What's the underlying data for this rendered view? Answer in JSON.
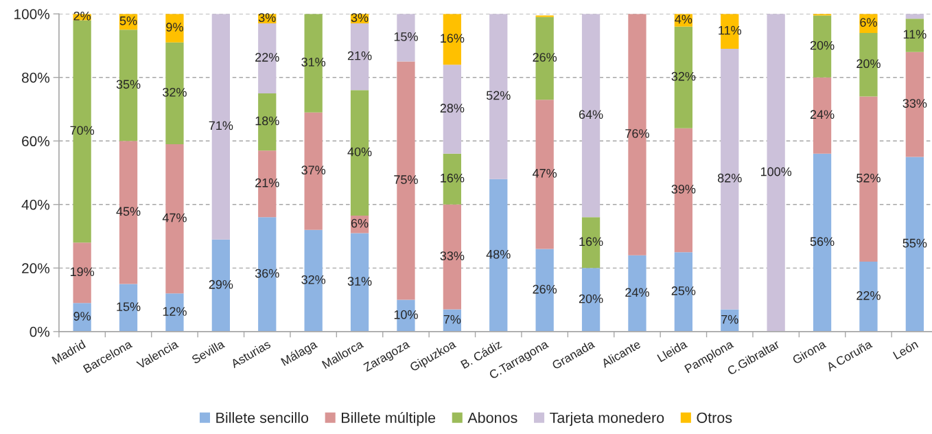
{
  "chart_data": {
    "type": "bar",
    "stacked": true,
    "categories": [
      "Madrid",
      "Barcelona",
      "Valencia",
      "Sevilla",
      "Asturias",
      "Málaga",
      "Mallorca",
      "Zaragoza",
      "Gipuzkoa",
      "B. Cádiz",
      "C.Tarragona",
      "Granada",
      "Alicante",
      "Lleida",
      "Pamplona",
      "C.Gibraltar",
      "Girona",
      "A Coruña",
      "León"
    ],
    "series": [
      {
        "name": "Billete sencillo",
        "color": "#8eb4e3",
        "values": [
          9,
          15,
          12,
          29,
          36,
          32,
          31,
          10,
          7,
          48,
          26,
          20,
          24,
          25,
          7,
          null,
          56,
          22,
          55
        ],
        "value_labels": [
          "9%",
          "15%",
          "12%",
          "29%",
          "36%",
          "32%",
          "31%",
          "10%",
          "7%",
          "48%",
          "26%",
          "20%",
          "24%",
          "25%",
          "7%",
          null,
          "56%",
          "22%",
          "55%"
        ]
      },
      {
        "name": "Billete múltiple",
        "color": "#d99594",
        "values": [
          19,
          45,
          47,
          null,
          21,
          37,
          5.5,
          75,
          33,
          null,
          47,
          null,
          76,
          39,
          null,
          null,
          24,
          52,
          33
        ],
        "value_labels": [
          "19%",
          "45%",
          "47%",
          null,
          "21%",
          "37%",
          "6%",
          "75%",
          "33%",
          null,
          "47%",
          null,
          "76%",
          "39%",
          null,
          null,
          "24%",
          "52%",
          "33%"
        ]
      },
      {
        "name": "Abonos",
        "color": "#9bbb59",
        "values": [
          70,
          35,
          32,
          null,
          18,
          31,
          39.5,
          null,
          16,
          null,
          26,
          16,
          null,
          32,
          null,
          null,
          19.5,
          20,
          10.5
        ],
        "value_labels": [
          "70%",
          "35%",
          "32%",
          null,
          "18%",
          "31%",
          "40%",
          null,
          "16%",
          null,
          "26%",
          "16%",
          null,
          "32%",
          null,
          null,
          "20%",
          "20%",
          "11%"
        ]
      },
      {
        "name": "Tarjeta monedero",
        "color": "#ccc1da",
        "values": [
          null,
          null,
          null,
          71,
          22,
          null,
          21,
          15,
          28,
          52,
          null,
          64,
          null,
          null,
          82,
          100,
          null,
          null,
          1.5
        ],
        "value_labels": [
          null,
          null,
          null,
          "71%",
          "22%",
          null,
          "21%",
          "15%",
          "28%",
          "52%",
          null,
          "64%",
          null,
          null,
          "82%",
          "100%",
          null,
          null,
          null
        ]
      },
      {
        "name": "Otros",
        "color": "#ffc000",
        "values": [
          2,
          5,
          9,
          null,
          3,
          null,
          3,
          null,
          16,
          null,
          0.5,
          null,
          null,
          4,
          11,
          null,
          0.5,
          6,
          null
        ],
        "value_labels": [
          "2%",
          "5%",
          "9%",
          null,
          "3%",
          null,
          "3%",
          null,
          "16%",
          null,
          null,
          null,
          null,
          "4%",
          "11%",
          null,
          null,
          "6%",
          null
        ]
      }
    ],
    "ylim": [
      0,
      100
    ],
    "yticks": [
      {
        "value": 0,
        "label": "0%"
      },
      {
        "value": 20,
        "label": "20%"
      },
      {
        "value": 40,
        "label": "40%"
      },
      {
        "value": 60,
        "label": "60%"
      },
      {
        "value": 80,
        "label": "80%"
      },
      {
        "value": 100,
        "label": "100%"
      }
    ],
    "grid": "y",
    "legend": "bottom"
  }
}
